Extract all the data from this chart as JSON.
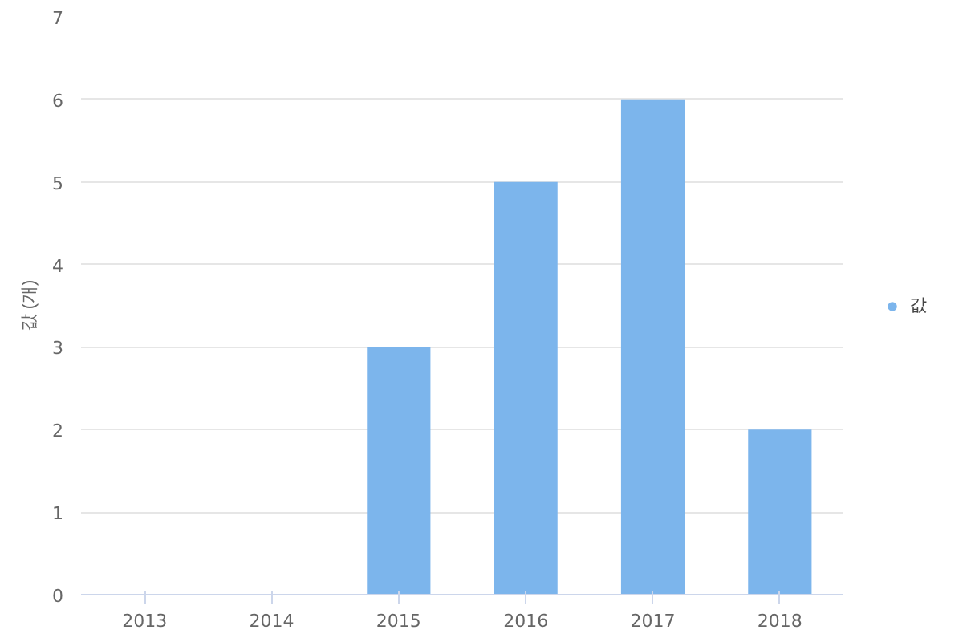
{
  "chart_data": {
    "type": "bar",
    "ylabel": "값 (개)",
    "categories": [
      "2013",
      "2014",
      "2015",
      "2016",
      "2017",
      "2018"
    ],
    "series": [
      {
        "name": "값",
        "color": "#7cb5ec",
        "values": [
          0,
          0,
          3,
          5,
          6,
          2
        ]
      }
    ],
    "ylim": [
      0,
      7
    ],
    "yticks": [
      0,
      1,
      2,
      3,
      4,
      5,
      6,
      7
    ],
    "grid": "y",
    "legend": "right"
  }
}
